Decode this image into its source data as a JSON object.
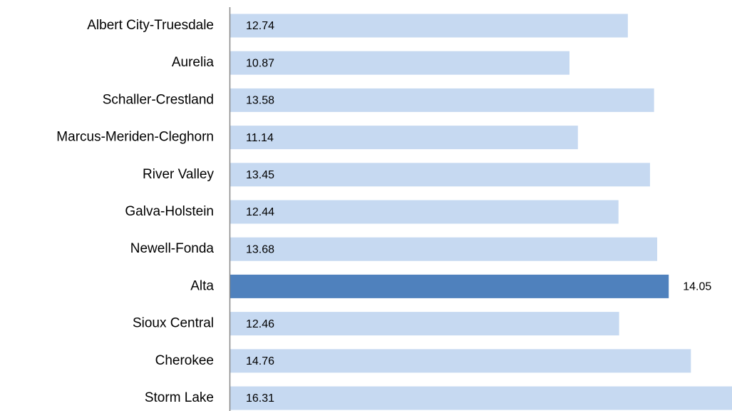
{
  "chart_data": {
    "type": "bar",
    "orientation": "horizontal",
    "categories": [
      "Albert City-Truesdale",
      "Aurelia",
      "Schaller-Crestland",
      "Marcus-Meriden-Cleghorn",
      "River Valley",
      "Galva-Holstein",
      "Newell-Fonda",
      "Alta",
      "Sioux Central",
      "Cherokee",
      "Storm Lake"
    ],
    "values": [
      12.74,
      10.87,
      13.58,
      11.14,
      13.45,
      12.44,
      13.68,
      14.05,
      12.46,
      14.76,
      16.31
    ],
    "colors": [
      "#c6d9f1",
      "#c6d9f1",
      "#c6d9f1",
      "#c6d9f1",
      "#c6d9f1",
      "#c6d9f1",
      "#c6d9f1",
      "#4f81bd",
      "#c6d9f1",
      "#c6d9f1",
      "#c6d9f1"
    ],
    "xlim": [
      0,
      16.1
    ]
  }
}
